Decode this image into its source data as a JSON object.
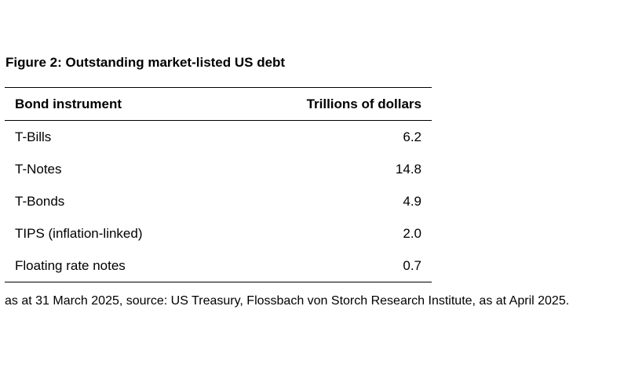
{
  "title": "Figure 2: Outstanding market-listed US debt",
  "table": {
    "headers": [
      "Bond instrument",
      "Trillions of dollars"
    ],
    "rows": [
      {
        "instrument": "T-Bills",
        "value": "6.2"
      },
      {
        "instrument": "T-Notes",
        "value": "14.8"
      },
      {
        "instrument": "T-Bonds",
        "value": "4.9"
      },
      {
        "instrument": "TIPS (inflation-linked)",
        "value": "2.0"
      },
      {
        "instrument": "Floating rate notes",
        "value": "0.7"
      }
    ]
  },
  "footnote": "as at 31 March 2025, source: US Treasury, Flossbach von Storch Research Institute, as at April 2025."
}
